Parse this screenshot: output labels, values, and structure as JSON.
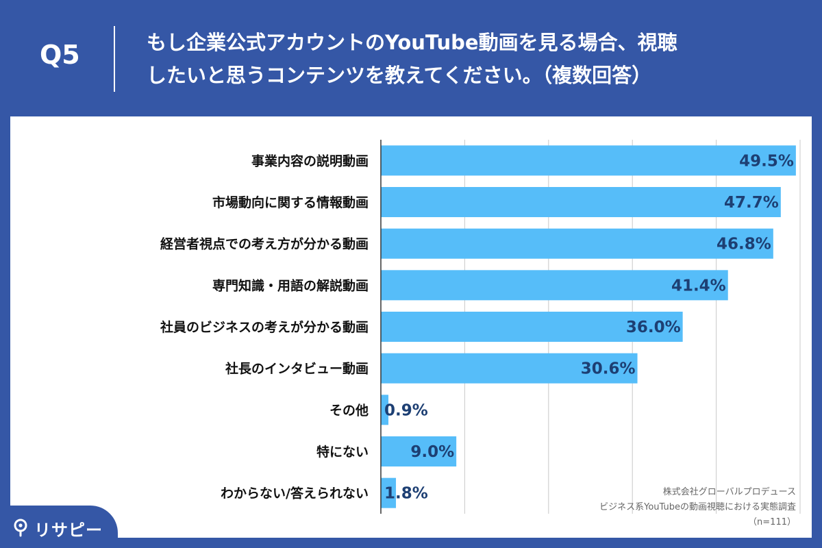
{
  "header": {
    "question_number": "Q5",
    "question_line1": "もし企業公式アカウントのYouTube動画を見る場合、視聴",
    "question_line2": "したいと思うコンテンツを教えてください。（複数回答）"
  },
  "chart_data": {
    "type": "bar",
    "orientation": "horizontal",
    "categories": [
      "事業内容の説明動画",
      "市場動向に関する情報動画",
      "経営者視点での考え方が分かる動画",
      "専門知識・用語の解説動画",
      "社員のビジネスの考えが分かる動画",
      "社長のインタビュー動画",
      "その他",
      "特にない",
      "わからない/答えられない"
    ],
    "values": [
      49.5,
      47.7,
      46.8,
      41.4,
      36.0,
      30.6,
      0.9,
      9.0,
      1.8
    ],
    "value_labels": [
      "49.5%",
      "47.7%",
      "46.8%",
      "41.4%",
      "36.0%",
      "30.6%",
      "0.9%",
      "9.0%",
      "1.8%"
    ],
    "xlim": [
      0,
      50
    ],
    "grid": true,
    "bar_color": "#56bdf9",
    "grid_color": "#c8c8c8",
    "label_color": "#1d3f73"
  },
  "source": {
    "line1": "株式会社グローバルプロデュース",
    "line2": "ビジネス系YouTubeの動画視聴における実態調査",
    "line3": "（n=111）"
  },
  "logo": {
    "text": "リサピー"
  },
  "colors": {
    "background": "#3557a6",
    "panel": "#ffffff",
    "text_on_dark": "#ffffff"
  }
}
